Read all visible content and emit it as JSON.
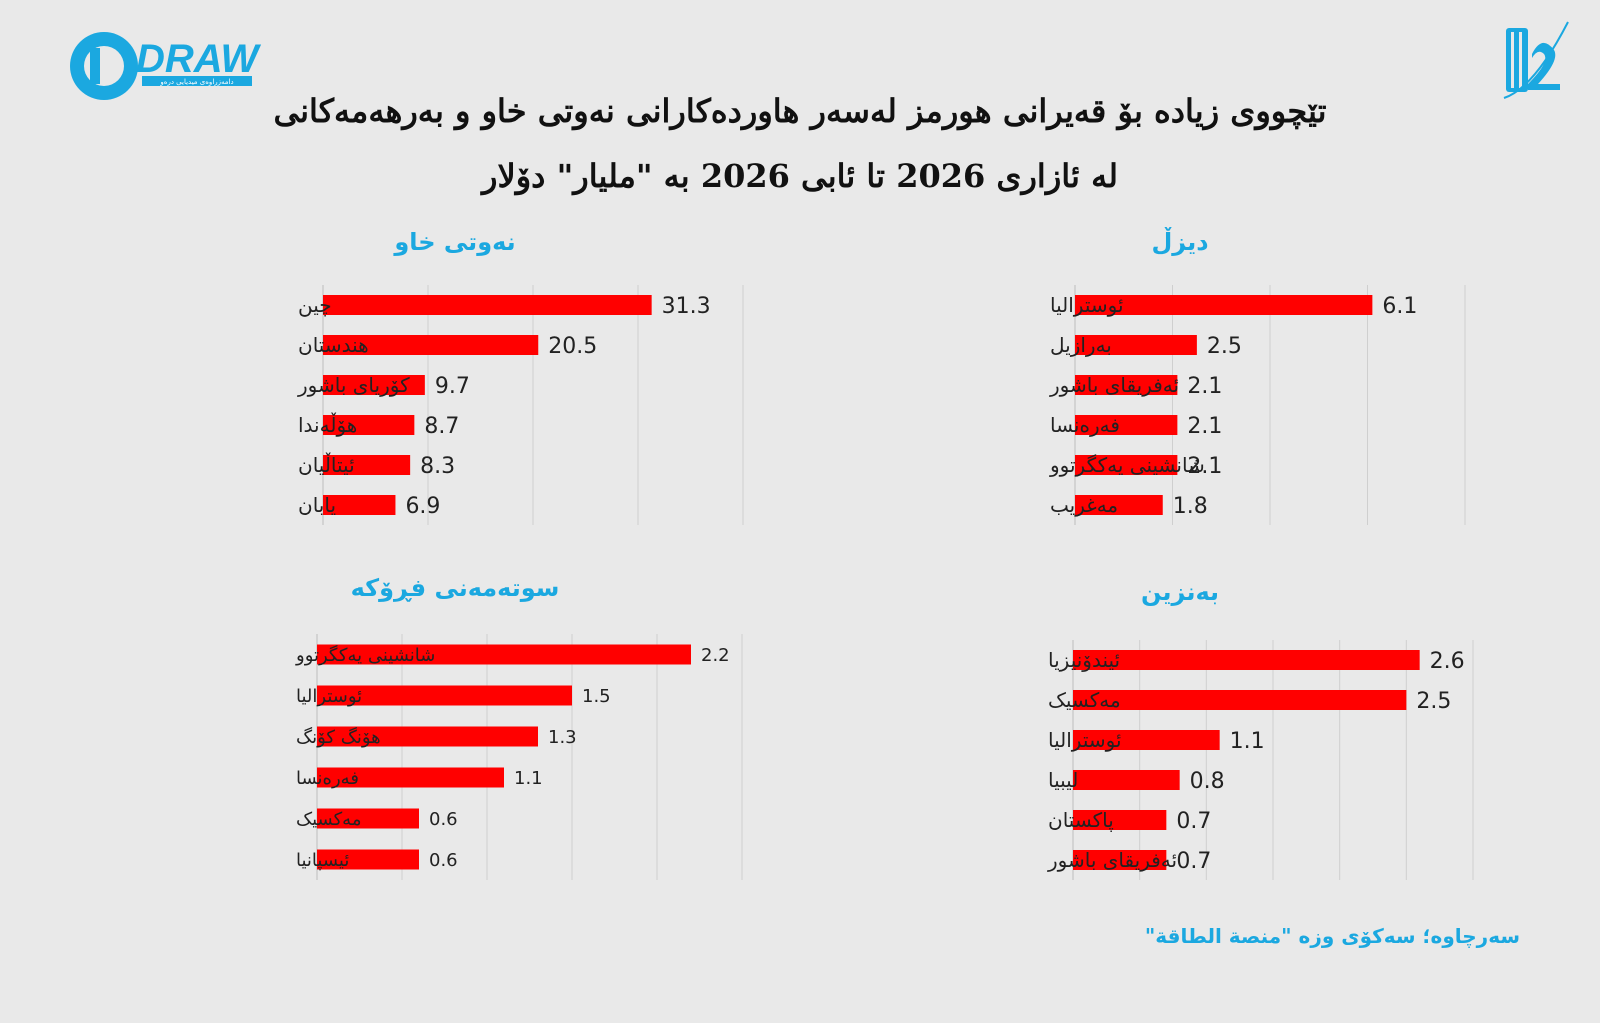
{
  "header": {
    "logo_text": "DRAW",
    "logo_subtext": "دامەزراوەی میدیایی درەو",
    "title_line1": "تێچووی زیادە بۆ قەیرانی هورمز لەسەر هاوردەکارانی نەوتی خاو و بەرهەمەکانی",
    "title_line2": "لە ئازاری 2026 تا ئابی 2026 بە \"ملیار\" دۆلار"
  },
  "source": "سەرچاوە؛ سەکۆی وزە \"منصة الطاقة\"",
  "colors": {
    "bar": "#ff0000",
    "accent": "#1ba8e0",
    "grid": "#cfcfcf"
  },
  "chart_data": [
    {
      "type": "bar",
      "orientation": "horizontal",
      "title": "نەوتی خاو",
      "categories": [
        "چین",
        "هندستان",
        "کۆریای باشور",
        "هۆڵەندا",
        "ئیتاڵیان",
        "یابان"
      ],
      "values": [
        31.3,
        20.5,
        9.7,
        8.7,
        8.3,
        6.9
      ],
      "xlim": [
        0,
        40
      ],
      "grid": true
    },
    {
      "type": "bar",
      "orientation": "horizontal",
      "title": "دیزڵ",
      "categories": [
        "ئوسترالیا",
        "بەرازیل",
        "ئەفریقای باشور",
        "فەرەنسا",
        "شانشینی یەکگرتوو",
        "مەغریب"
      ],
      "values": [
        6.1,
        2.5,
        2.1,
        2.1,
        2.1,
        1.8
      ],
      "xlim": [
        0,
        8
      ],
      "grid": true
    },
    {
      "type": "bar",
      "orientation": "horizontal",
      "title": "سوتەمەنی فڕۆکە",
      "categories": [
        "شانشینی یەکگرتوو",
        "ئوسترالیا",
        "هۆنگ کۆنگ",
        "فەرەنسا",
        "مەکسیک",
        "ئیسپانیا"
      ],
      "values": [
        2.2,
        1.5,
        1.3,
        1.1,
        0.6,
        0.6
      ],
      "xlim": [
        0,
        2.5
      ],
      "grid": true
    },
    {
      "type": "bar",
      "orientation": "horizontal",
      "title": "بەنزین",
      "categories": [
        "ئیندۆنیزیا",
        "مەکسیک",
        "ئوسترالیا",
        "لیبیا",
        "پاکستان",
        "ئەفریقای باشور"
      ],
      "values": [
        2.6,
        2.5,
        1.1,
        0.8,
        0.7,
        0.7
      ],
      "xlim": [
        0,
        3
      ],
      "grid": true
    }
  ]
}
